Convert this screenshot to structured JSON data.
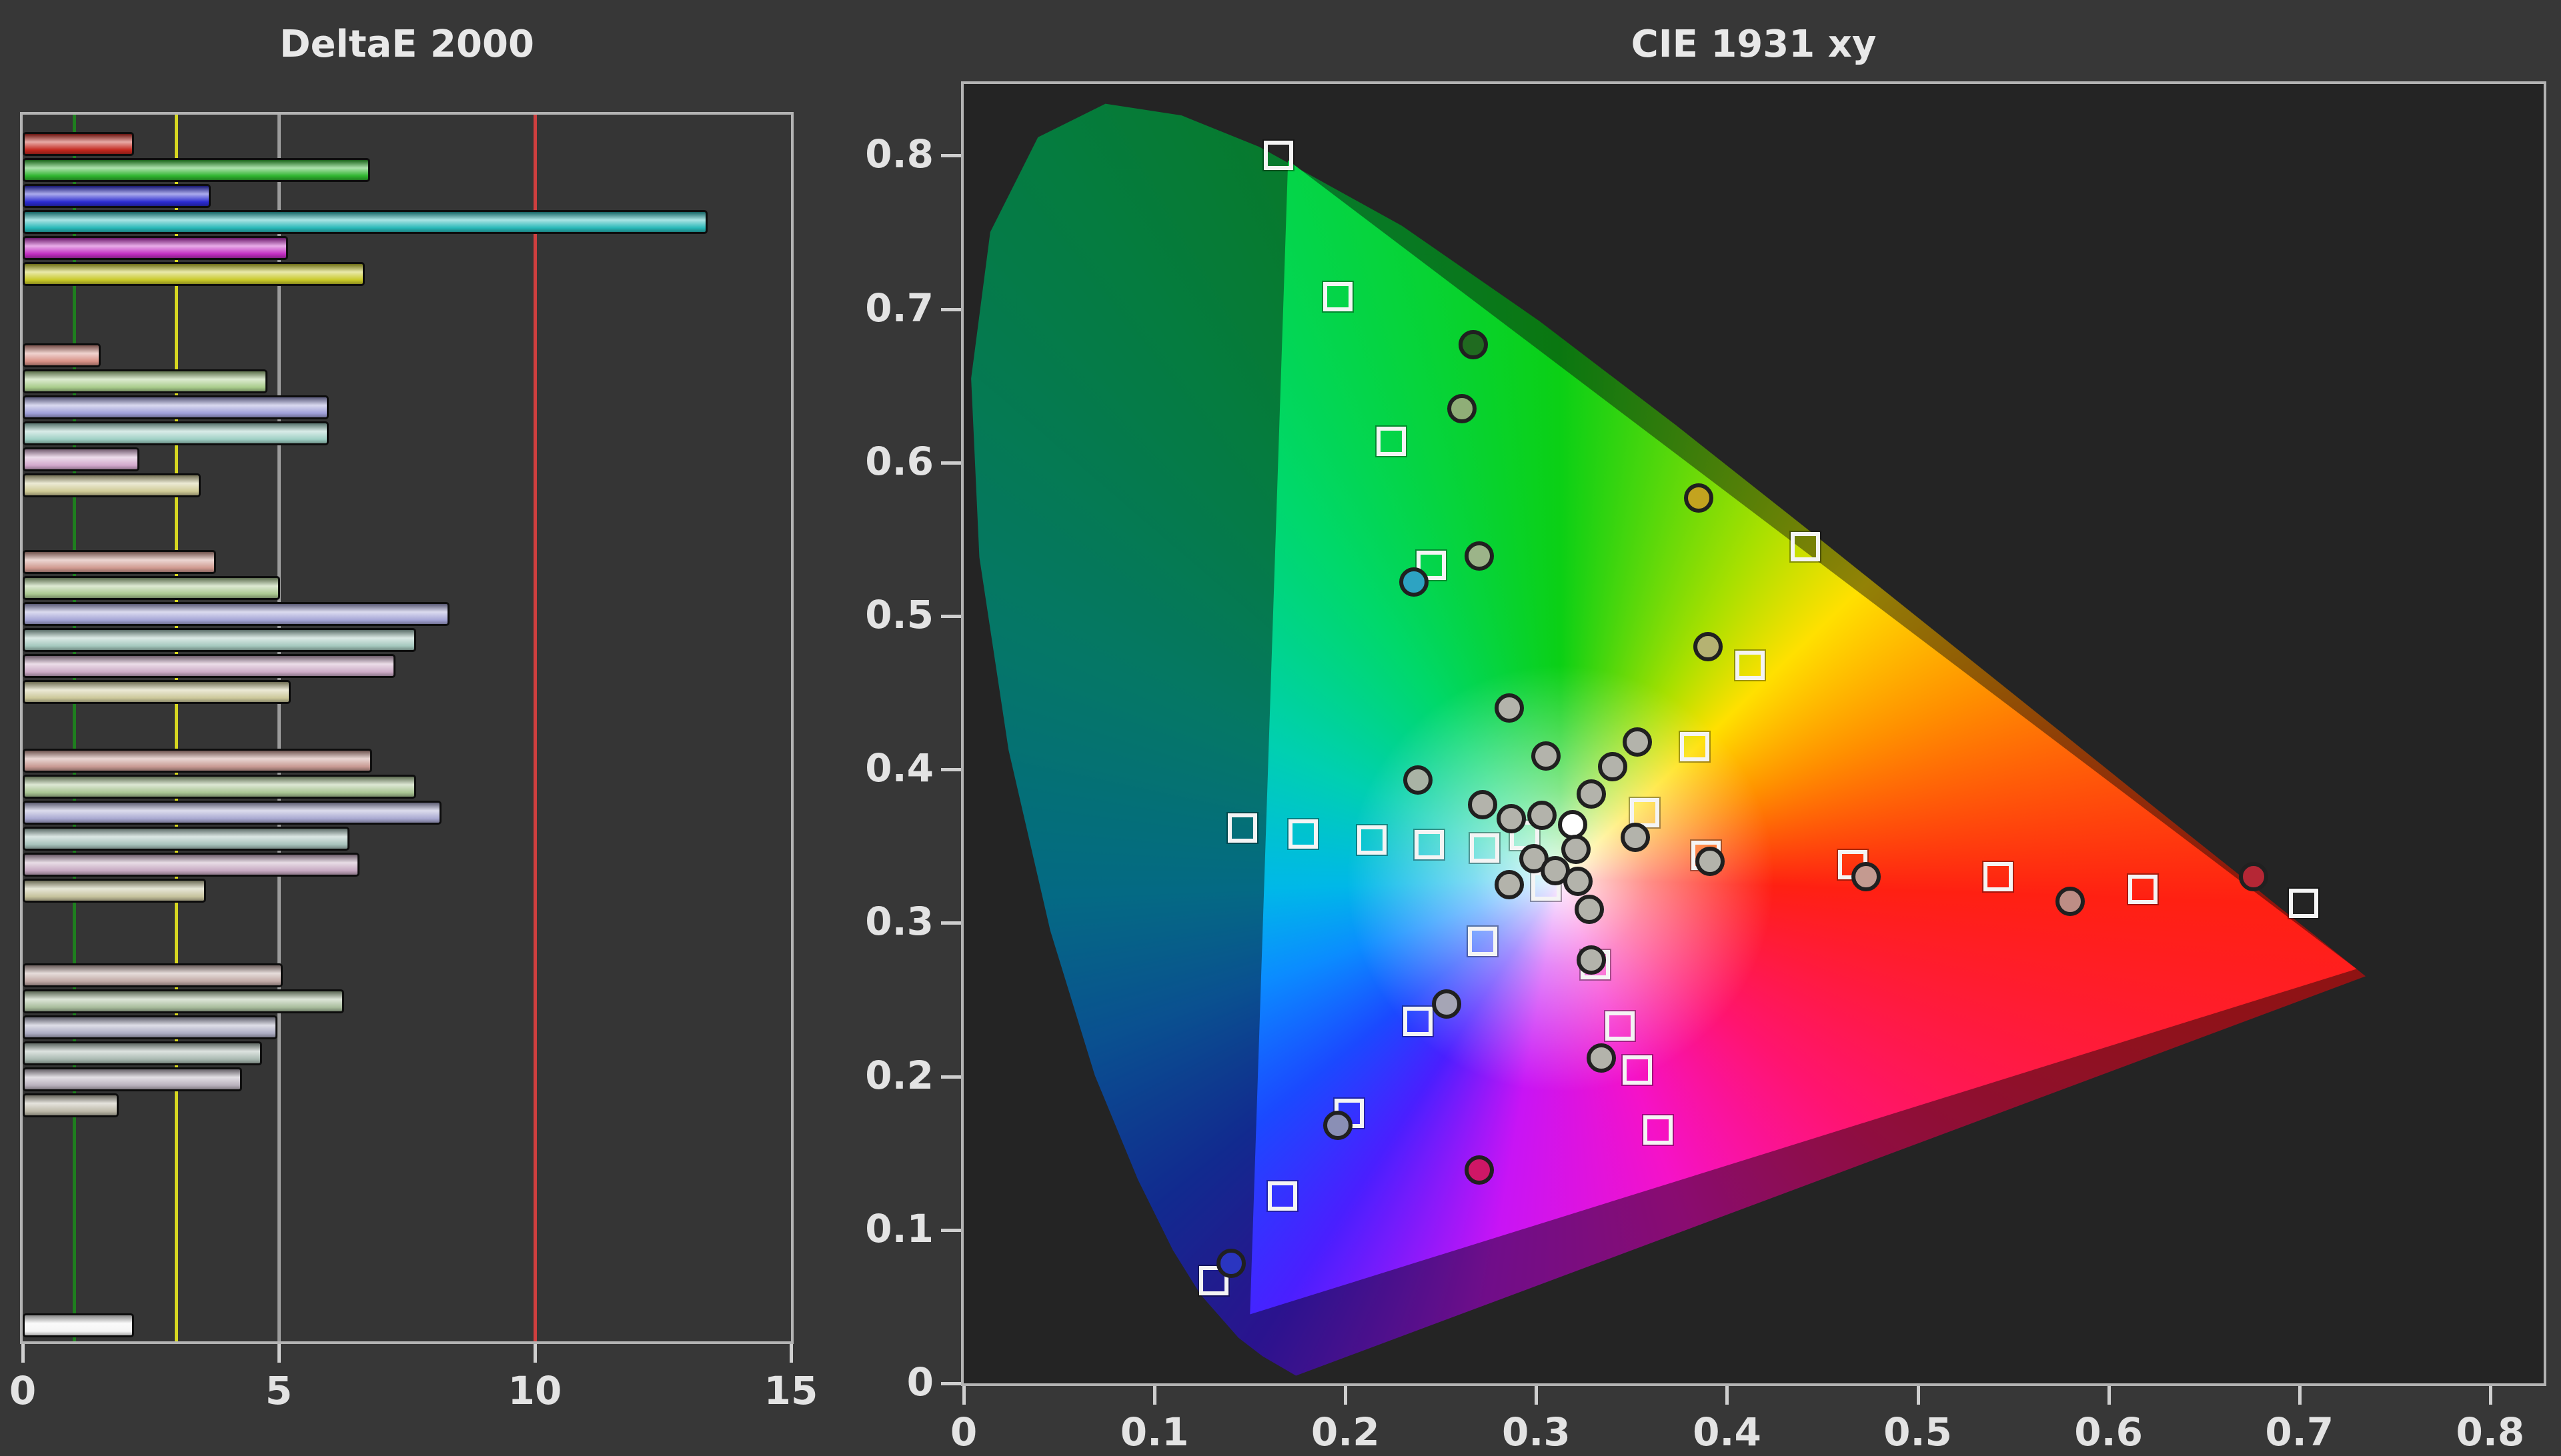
{
  "page": {
    "background": "#373737"
  },
  "chart_data": [
    {
      "type": "bar",
      "title": "DeltaE 2000",
      "orientation": "horizontal",
      "xlim": [
        0,
        15
      ],
      "x_ticks": [
        "0",
        "5",
        "10",
        "15"
      ],
      "grid": "vertical-line-at-5-and-15",
      "legend_position": "none",
      "reference_lines": [
        {
          "value": 1,
          "color": "#1f7e1f"
        },
        {
          "value": 3,
          "color": "#d6d621"
        },
        {
          "value": 5,
          "color": "#9c9c9c"
        },
        {
          "value": 10,
          "color": "#cf3f3f"
        }
      ],
      "bar_groups": [
        [
          {
            "value": 2.1,
            "color": "#c4281f"
          },
          {
            "value": 6.7,
            "color": "#2fb52f"
          },
          {
            "value": 3.6,
            "color": "#2b2bd0"
          },
          {
            "value": 13.3,
            "color": "#28b8b8"
          },
          {
            "value": 5.1,
            "color": "#c22ec2"
          },
          {
            "value": 6.6,
            "color": "#c9c929"
          }
        ],
        [
          {
            "value": 1.45,
            "color": "#d89186"
          },
          {
            "value": 4.7,
            "color": "#a9cc8b"
          },
          {
            "value": 5.9,
            "color": "#9f9fd8"
          },
          {
            "value": 5.9,
            "color": "#9fd0c5"
          },
          {
            "value": 2.2,
            "color": "#d3a9cd"
          },
          {
            "value": 3.4,
            "color": "#cfca96"
          }
        ],
        [
          {
            "value": 3.7,
            "color": "#d09a90"
          },
          {
            "value": 4.95,
            "color": "#abc891"
          },
          {
            "value": 8.25,
            "color": "#a6a6d6"
          },
          {
            "value": 7.6,
            "color": "#a5c8be"
          },
          {
            "value": 7.2,
            "color": "#ccabc6"
          },
          {
            "value": 5.15,
            "color": "#ccc89b"
          }
        ],
        [
          {
            "value": 6.75,
            "color": "#c89a93"
          },
          {
            "value": 7.6,
            "color": "#a9c493"
          },
          {
            "value": 8.1,
            "color": "#a9a9d1"
          },
          {
            "value": 6.3,
            "color": "#a7c2bb"
          },
          {
            "value": 6.5,
            "color": "#c6a9c1"
          },
          {
            "value": 3.5,
            "color": "#c6c29d"
          }
        ],
        [
          {
            "value": 5.0,
            "color": "#c1a9a5"
          },
          {
            "value": 6.2,
            "color": "#a9bd9d"
          },
          {
            "value": 4.9,
            "color": "#acacc3"
          },
          {
            "value": 4.6,
            "color": "#a9b9b1"
          },
          {
            "value": 4.2,
            "color": "#b9b1bd"
          },
          {
            "value": 1.8,
            "color": "#bdb9a9"
          }
        ],
        [
          {
            "value": 2.1,
            "color": "#f5f5f5"
          }
        ]
      ]
    },
    {
      "type": "scatter",
      "title": "CIE 1931 xy",
      "xlim": [
        0,
        0.8
      ],
      "ylim": [
        0,
        0.8
      ],
      "x_ticks": [
        "0",
        "0.1",
        "0.2",
        "0.3",
        "0.4",
        "0.5",
        "0.6",
        "0.7",
        "0.8"
      ],
      "y_ticks": [
        "0",
        "0.1",
        "0.2",
        "0.3",
        "0.4",
        "0.5",
        "0.6",
        "0.7",
        "0.8"
      ],
      "white_point": [
        0.3127,
        0.329
      ],
      "gamut_triangle": [
        [
          0.17,
          0.797
        ],
        [
          0.73,
          0.27
        ],
        [
          0.15,
          0.045
        ]
      ],
      "spectral_locus": [
        [
          0.1741,
          0.005
        ],
        [
          0.1566,
          0.0177
        ],
        [
          0.144,
          0.0297
        ],
        [
          0.1241,
          0.0578
        ],
        [
          0.1096,
          0.0868
        ],
        [
          0.0913,
          0.1327
        ],
        [
          0.0687,
          0.2007
        ],
        [
          0.0454,
          0.295
        ],
        [
          0.0235,
          0.4127
        ],
        [
          0.0082,
          0.5384
        ],
        [
          0.0039,
          0.6548
        ],
        [
          0.0139,
          0.7502
        ],
        [
          0.0389,
          0.812
        ],
        [
          0.0743,
          0.8338
        ],
        [
          0.1142,
          0.8262
        ],
        [
          0.1547,
          0.8059
        ],
        [
          0.2296,
          0.7543
        ],
        [
          0.3016,
          0.6923
        ],
        [
          0.3731,
          0.6245
        ],
        [
          0.4441,
          0.5547
        ],
        [
          0.5125,
          0.4866
        ],
        [
          0.5752,
          0.4242
        ],
        [
          0.627,
          0.3725
        ],
        [
          0.6658,
          0.334
        ],
        [
          0.6915,
          0.3083
        ],
        [
          0.7079,
          0.292
        ],
        [
          0.719,
          0.2809
        ],
        [
          0.726,
          0.274
        ],
        [
          0.7347,
          0.2653
        ]
      ],
      "targets": [
        [
          0.165,
          0.8
        ],
        [
          0.196,
          0.708
        ],
        [
          0.224,
          0.614
        ],
        [
          0.245,
          0.533
        ],
        [
          0.441,
          0.545
        ],
        [
          0.412,
          0.468
        ],
        [
          0.383,
          0.415
        ],
        [
          0.357,
          0.372
        ],
        [
          0.146,
          0.362
        ],
        [
          0.178,
          0.358
        ],
        [
          0.214,
          0.354
        ],
        [
          0.244,
          0.351
        ],
        [
          0.273,
          0.349
        ],
        [
          0.294,
          0.357
        ],
        [
          0.305,
          0.324
        ],
        [
          0.389,
          0.344
        ],
        [
          0.466,
          0.338
        ],
        [
          0.542,
          0.33
        ],
        [
          0.618,
          0.322
        ],
        [
          0.702,
          0.313
        ],
        [
          0.331,
          0.273
        ],
        [
          0.344,
          0.233
        ],
        [
          0.353,
          0.204
        ],
        [
          0.364,
          0.165
        ],
        [
          0.272,
          0.288
        ],
        [
          0.238,
          0.236
        ],
        [
          0.202,
          0.176
        ],
        [
          0.167,
          0.122
        ],
        [
          0.131,
          0.067
        ]
      ],
      "measurements": [
        {
          "x": 0.267,
          "y": 0.677,
          "color": "#206b20"
        },
        {
          "x": 0.261,
          "y": 0.635,
          "color": "#8fae77"
        },
        {
          "x": 0.27,
          "y": 0.539,
          "color": "#9cb489"
        },
        {
          "x": 0.236,
          "y": 0.522,
          "color": "#2da3c2"
        },
        {
          "x": 0.385,
          "y": 0.577,
          "color": "#c3a31f"
        },
        {
          "x": 0.39,
          "y": 0.48,
          "color": "#b5b272"
        },
        {
          "x": 0.286,
          "y": 0.44,
          "color": "#b3b3ab"
        },
        {
          "x": 0.305,
          "y": 0.409,
          "color": "#b3b3ab"
        },
        {
          "x": 0.34,
          "y": 0.402,
          "color": "#b3b3ab"
        },
        {
          "x": 0.353,
          "y": 0.418,
          "color": "#b3b3ab"
        },
        {
          "x": 0.329,
          "y": 0.384,
          "color": "#b3b3ab"
        },
        {
          "x": 0.238,
          "y": 0.393,
          "color": "#a9b3a5"
        },
        {
          "x": 0.272,
          "y": 0.377,
          "color": "#b3b3ab"
        },
        {
          "x": 0.287,
          "y": 0.368,
          "color": "#b3b3ab"
        },
        {
          "x": 0.303,
          "y": 0.37,
          "color": "#b3b3ab"
        },
        {
          "x": 0.319,
          "y": 0.364,
          "color": "#ffffff"
        },
        {
          "x": 0.352,
          "y": 0.356,
          "color": "#b3b3ab"
        },
        {
          "x": 0.391,
          "y": 0.34,
          "color": "#b3b3ab"
        },
        {
          "x": 0.321,
          "y": 0.348,
          "color": "#b3b3ab"
        },
        {
          "x": 0.299,
          "y": 0.342,
          "color": "#b3b3ab"
        },
        {
          "x": 0.31,
          "y": 0.334,
          "color": "#b3b3ab"
        },
        {
          "x": 0.322,
          "y": 0.327,
          "color": "#b3b3ab"
        },
        {
          "x": 0.286,
          "y": 0.325,
          "color": "#b3b3ab"
        },
        {
          "x": 0.328,
          "y": 0.309,
          "color": "#b3b3ab"
        },
        {
          "x": 0.329,
          "y": 0.276,
          "color": "#b3b3ab"
        },
        {
          "x": 0.334,
          "y": 0.212,
          "color": "#b3b3ab"
        },
        {
          "x": 0.253,
          "y": 0.247,
          "color": "#a5a5b5"
        },
        {
          "x": 0.196,
          "y": 0.168,
          "color": "#8a8fb5"
        },
        {
          "x": 0.14,
          "y": 0.078,
          "color": "#2a35c0"
        },
        {
          "x": 0.27,
          "y": 0.139,
          "color": "#cf1766"
        },
        {
          "x": 0.473,
          "y": 0.33,
          "color": "#c49a90"
        },
        {
          "x": 0.58,
          "y": 0.314,
          "color": "#bd8d85"
        },
        {
          "x": 0.676,
          "y": 0.33,
          "color": "#b52735"
        }
      ]
    }
  ]
}
